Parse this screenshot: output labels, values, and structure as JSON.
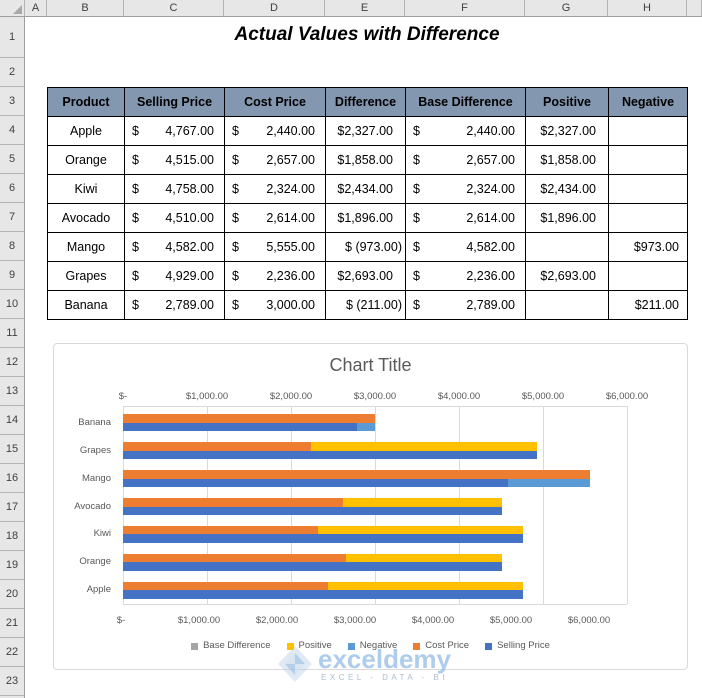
{
  "spreadsheet": {
    "column_headers": [
      "A",
      "B",
      "C",
      "D",
      "E",
      "F",
      "G",
      "H"
    ],
    "row_numbers": [
      "1",
      "2",
      "3",
      "4",
      "5",
      "6",
      "7",
      "8",
      "9",
      "10",
      "11",
      "12",
      "13",
      "14",
      "15",
      "16",
      "17",
      "18",
      "19",
      "20",
      "21",
      "22",
      "23"
    ],
    "title": "Actual Values with Difference"
  },
  "table": {
    "currency": "$",
    "header_fill": "#8497B0",
    "headers": [
      "Product",
      "Selling Price",
      "Cost Price",
      "Difference",
      "Base Difference",
      "Positive",
      "Negative"
    ],
    "rows": [
      {
        "product": "Apple",
        "selling": "4,767.00",
        "cost": "2,440.00",
        "difference": "$2,327.00",
        "base": "2,440.00",
        "positive": "$2,327.00",
        "negative": ""
      },
      {
        "product": "Orange",
        "selling": "4,515.00",
        "cost": "2,657.00",
        "difference": "$1,858.00",
        "base": "2,657.00",
        "positive": "$1,858.00",
        "negative": ""
      },
      {
        "product": "Kiwi",
        "selling": "4,758.00",
        "cost": "2,324.00",
        "difference": "$2,434.00",
        "base": "2,324.00",
        "positive": "$2,434.00",
        "negative": ""
      },
      {
        "product": "Avocado",
        "selling": "4,510.00",
        "cost": "2,614.00",
        "difference": "$1,896.00",
        "base": "2,614.00",
        "positive": "$1,896.00",
        "negative": ""
      },
      {
        "product": "Mango",
        "selling": "4,582.00",
        "cost": "5,555.00",
        "difference": "$ (973.00)",
        "base": "4,582.00",
        "positive": "",
        "negative": "$973.00"
      },
      {
        "product": "Grapes",
        "selling": "4,929.00",
        "cost": "2,236.00",
        "difference": "$2,693.00",
        "base": "2,236.00",
        "positive": "$2,693.00",
        "negative": ""
      },
      {
        "product": "Banana",
        "selling": "2,789.00",
        "cost": "3,000.00",
        "difference": "$ (211.00)",
        "base": "2,789.00",
        "positive": "",
        "negative": "$211.00"
      }
    ]
  },
  "chart": {
    "title": "Chart Title",
    "colors": {
      "selling": "#4472C4",
      "cost": "#ED7D31",
      "base": "#A5A5A5",
      "positive": "#FFC000",
      "negative": "#5B9BD5"
    },
    "legend": [
      {
        "label": "Base Difference",
        "key": "base"
      },
      {
        "label": "Positive",
        "key": "positive"
      },
      {
        "label": "Negative",
        "key": "negative"
      },
      {
        "label": "Cost Price",
        "key": "cost"
      },
      {
        "label": "Selling Price",
        "key": "selling"
      }
    ],
    "chart_data": {
      "type": "bar",
      "orientation": "horizontal",
      "title": "Chart Title",
      "categories": [
        "Banana",
        "Grapes",
        "Mango",
        "Avocado",
        "Kiwi",
        "Orange",
        "Apple"
      ],
      "axis_ticks": [
        "$-",
        "$1,000.00",
        "$2,000.00",
        "$3,000.00",
        "$4,000.00",
        "$5,000.00",
        "$6,000.00"
      ],
      "xlim": [
        0,
        6000
      ],
      "grid": true,
      "legend_position": "bottom",
      "series": [
        {
          "name": "Base Difference",
          "values": [
            2789,
            2236,
            4582,
            2614,
            2324,
            2657,
            2440
          ]
        },
        {
          "name": "Positive",
          "values": [
            0,
            2693,
            0,
            1896,
            2434,
            1858,
            2327
          ]
        },
        {
          "name": "Negative",
          "values": [
            211,
            0,
            973,
            0,
            0,
            0,
            0
          ]
        },
        {
          "name": "Cost Price",
          "values": [
            3000,
            2236,
            5555,
            2614,
            2324,
            2657,
            2440
          ]
        },
        {
          "name": "Selling Price",
          "values": [
            2789,
            4929,
            4582,
            4510,
            4758,
            4515,
            4767
          ]
        }
      ],
      "bars": [
        {
          "category": "Banana",
          "upper": [
            [
              "cost",
              3000
            ]
          ],
          "lower": [
            [
              "selling",
              2789
            ],
            [
              "negative",
              211
            ]
          ]
        },
        {
          "category": "Grapes",
          "upper": [
            [
              "cost",
              2236
            ],
            [
              "positive",
              2693
            ]
          ],
          "lower": [
            [
              "selling",
              4929
            ]
          ]
        },
        {
          "category": "Mango",
          "upper": [
            [
              "cost",
              5555
            ]
          ],
          "lower": [
            [
              "selling",
              4582
            ],
            [
              "negative",
              973
            ]
          ]
        },
        {
          "category": "Avocado",
          "upper": [
            [
              "cost",
              2614
            ],
            [
              "positive",
              1896
            ]
          ],
          "lower": [
            [
              "selling",
              4510
            ]
          ]
        },
        {
          "category": "Kiwi",
          "upper": [
            [
              "cost",
              2324
            ],
            [
              "positive",
              2434
            ]
          ],
          "lower": [
            [
              "selling",
              4758
            ]
          ]
        },
        {
          "category": "Orange",
          "upper": [
            [
              "cost",
              2657
            ],
            [
              "positive",
              1858
            ]
          ],
          "lower": [
            [
              "selling",
              4515
            ]
          ]
        },
        {
          "category": "Apple",
          "upper": [
            [
              "cost",
              2440
            ],
            [
              "positive",
              2327
            ]
          ],
          "lower": [
            [
              "selling",
              4767
            ]
          ]
        }
      ]
    }
  },
  "watermark": {
    "brand": "exceldemy",
    "tagline": "EXCEL - DATA - BI"
  }
}
